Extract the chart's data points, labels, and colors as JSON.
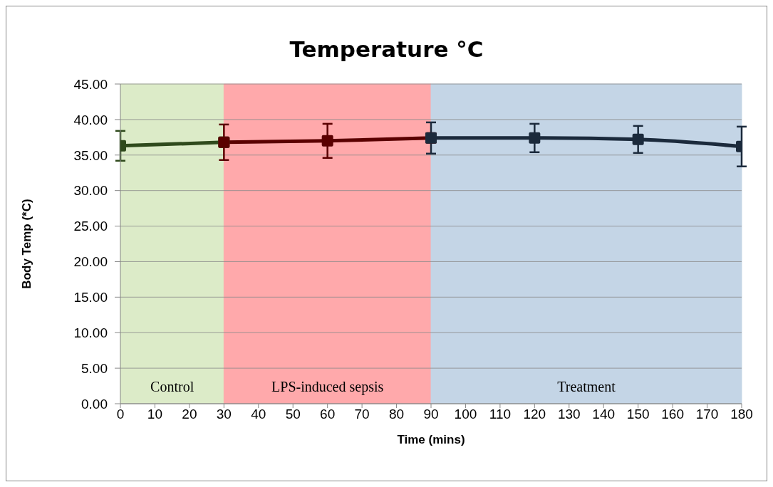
{
  "chart_data": {
    "type": "line",
    "title": "Temperature °C",
    "xlabel": "Time (mins)",
    "ylabel": "Body Temp (*C)",
    "series": [
      {
        "color": "#2f4a1c",
        "x": [
          0,
          30
        ],
        "values": [
          36.3,
          36.8
        ],
        "errors": [
          2.1,
          null
        ]
      },
      {
        "color": "#5a0000",
        "x": [
          30,
          60,
          90
        ],
        "values": [
          36.8,
          37.0,
          37.4
        ],
        "errors": [
          2.5,
          2.4,
          null
        ]
      },
      {
        "color": "#1b2a3c",
        "x": [
          90,
          120,
          150,
          180
        ],
        "values": [
          37.4,
          37.4,
          37.2,
          36.2
        ],
        "errors": [
          2.2,
          2.0,
          1.9,
          2.8
        ]
      }
    ],
    "xlim": [
      0,
      180
    ],
    "xticks": [
      0,
      10,
      20,
      30,
      40,
      50,
      60,
      70,
      80,
      90,
      100,
      110,
      120,
      130,
      140,
      150,
      160,
      170,
      180
    ],
    "ylim": [
      0,
      45
    ],
    "yticks": [
      {
        "value": 0,
        "label": "0.00"
      },
      {
        "value": 5,
        "label": "5.00"
      },
      {
        "value": 10,
        "label": "10.00"
      },
      {
        "value": 15,
        "label": "15.00"
      },
      {
        "value": 20,
        "label": "20.00"
      },
      {
        "value": 25,
        "label": "25.00"
      },
      {
        "value": 30,
        "label": "30.00"
      },
      {
        "value": 35,
        "label": "35.00"
      },
      {
        "value": 40,
        "label": "40.00"
      },
      {
        "value": 45,
        "label": "45.00"
      }
    ],
    "bands": [
      {
        "axis": "x",
        "from": 0,
        "to": 30,
        "label": "Control",
        "color": "#dcebc8"
      },
      {
        "axis": "x",
        "from": 30,
        "to": 90,
        "label": "LPS-induced sepsis",
        "color": "#ffa9ab"
      },
      {
        "axis": "x",
        "from": 90,
        "to": 180,
        "label": "Treatment",
        "color": "#c4d5e6"
      }
    ],
    "grid": "y",
    "marker": "square",
    "line_style": "solid"
  }
}
